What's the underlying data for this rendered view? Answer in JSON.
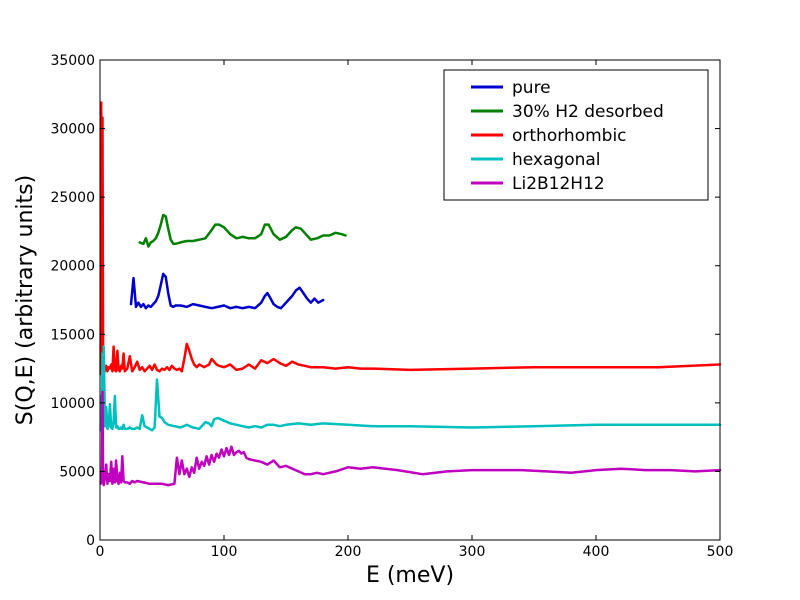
{
  "chart_data": {
    "type": "line",
    "title": "",
    "xlabel": "E (meV)",
    "ylabel": "S(Q,E) (arbitrary units)",
    "xlim": [
      0,
      500
    ],
    "ylim": [
      0,
      35000
    ],
    "x_ticks": [
      0,
      100,
      200,
      300,
      400,
      500
    ],
    "y_ticks": [
      0,
      5000,
      10000,
      15000,
      20000,
      25000,
      30000,
      35000
    ],
    "grid": false,
    "legend": {
      "position": "top-right"
    },
    "series": [
      {
        "name": "pure",
        "color": "#0000cc",
        "x": [
          25,
          27,
          29,
          31,
          33,
          35,
          37,
          39,
          41,
          43,
          45,
          47,
          49,
          51,
          53,
          55,
          57,
          59,
          61,
          65,
          70,
          75,
          80,
          85,
          90,
          95,
          100,
          105,
          110,
          115,
          120,
          125,
          130,
          133,
          135,
          137,
          140,
          143,
          146,
          150,
          155,
          158,
          161,
          164,
          167,
          170,
          173,
          176,
          180
        ],
        "y": [
          17200,
          19100,
          17000,
          17300,
          17000,
          17200,
          16900,
          17100,
          17000,
          17200,
          17400,
          17800,
          18600,
          19400,
          19200,
          18000,
          17100,
          17000,
          17100,
          17100,
          17000,
          17200,
          17100,
          17000,
          16900,
          17000,
          17100,
          16900,
          17000,
          16900,
          17000,
          16900,
          17300,
          17800,
          18000,
          17700,
          17200,
          17000,
          16900,
          17300,
          17800,
          18200,
          18400,
          18000,
          17600,
          17300,
          17600,
          17300,
          17500
        ]
      },
      {
        "name": "30% H2 desorbed",
        "color": "#008000",
        "x": [
          32,
          35,
          37,
          39,
          41,
          43,
          45,
          47,
          49,
          51,
          53,
          55,
          57,
          59,
          61,
          65,
          70,
          75,
          80,
          85,
          90,
          93,
          96,
          100,
          105,
          110,
          115,
          120,
          125,
          130,
          133,
          136,
          140,
          145,
          150,
          155,
          158,
          162,
          166,
          170,
          175,
          180,
          185,
          190,
          195,
          198
        ],
        "y": [
          21700,
          21600,
          22000,
          21400,
          21700,
          21800,
          22000,
          22400,
          23000,
          23700,
          23600,
          22700,
          21900,
          21600,
          21600,
          21700,
          21800,
          21800,
          21900,
          22000,
          22600,
          23000,
          23000,
          22800,
          22300,
          22000,
          22100,
          22000,
          22000,
          22300,
          23000,
          23000,
          22300,
          21900,
          22100,
          22600,
          22800,
          22700,
          22300,
          21900,
          22000,
          22200,
          22200,
          22400,
          22300,
          22200
        ]
      },
      {
        "name": "orthorhombic",
        "color": "#ff0000",
        "x": [
          0.5,
          1,
          1.5,
          2,
          2.5,
          3,
          4,
          5,
          6,
          7,
          8,
          9,
          10,
          11,
          12,
          13,
          14,
          15,
          16,
          17,
          18,
          19,
          20,
          22,
          24,
          26,
          28,
          30,
          32,
          34,
          36,
          38,
          40,
          42,
          44,
          46,
          48,
          50,
          52,
          54,
          56,
          58,
          60,
          62,
          64,
          66,
          68,
          70,
          72,
          74,
          76,
          78,
          80,
          82,
          84,
          86,
          88,
          90,
          92,
          94,
          96,
          100,
          105,
          110,
          115,
          120,
          125,
          130,
          135,
          140,
          145,
          150,
          155,
          160,
          165,
          170,
          180,
          190,
          200,
          210,
          220,
          250,
          300,
          350,
          400,
          450,
          500
        ],
        "y": [
          12100,
          31900,
          12400,
          30800,
          12300,
          12100,
          12400,
          12700,
          12300,
          12600,
          12500,
          12800,
          12300,
          14100,
          12400,
          12300,
          13800,
          12400,
          12300,
          12700,
          12500,
          13600,
          12300,
          12500,
          13400,
          12300,
          12600,
          13000,
          12400,
          12600,
          12300,
          12500,
          12700,
          12400,
          12800,
          12400,
          12300,
          12500,
          12400,
          12600,
          12400,
          12700,
          12500,
          12400,
          12500,
          12300,
          13200,
          14300,
          13800,
          13200,
          12800,
          12600,
          12800,
          12700,
          12600,
          12700,
          12800,
          13200,
          13000,
          12800,
          12700,
          12600,
          12800,
          12400,
          12500,
          12800,
          12500,
          13100,
          12900,
          13200,
          12900,
          12700,
          13000,
          12800,
          12700,
          12600,
          12600,
          12500,
          12600,
          12500,
          12500,
          12400,
          12500,
          12600,
          12600,
          12600,
          12800
        ]
      },
      {
        "name": "hexagonal",
        "color": "#00bfbf",
        "x": [
          0.5,
          1,
          1.5,
          2,
          2.5,
          3,
          4,
          5,
          6,
          7,
          8,
          9,
          10,
          11,
          12,
          13,
          14,
          15,
          16,
          17,
          18,
          19,
          20,
          22,
          24,
          26,
          28,
          30,
          32,
          34,
          36,
          38,
          40,
          42,
          44,
          46,
          48,
          50,
          52,
          55,
          60,
          65,
          70,
          75,
          80,
          85,
          88,
          90,
          92,
          95,
          100,
          105,
          110,
          115,
          120,
          125,
          130,
          135,
          140,
          145,
          150,
          160,
          170,
          180,
          200,
          220,
          250,
          300,
          350,
          400,
          450,
          500
        ],
        "y": [
          8000,
          10500,
          8200,
          13600,
          8100,
          14100,
          8300,
          9700,
          8100,
          8300,
          9900,
          8200,
          8100,
          8600,
          10500,
          8200,
          8300,
          8100,
          8100,
          8200,
          8100,
          8400,
          8100,
          8100,
          8200,
          8100,
          8100,
          8200,
          8100,
          9100,
          8300,
          8200,
          8100,
          8000,
          8200,
          11700,
          9000,
          8900,
          8600,
          8400,
          8300,
          8200,
          8400,
          8200,
          8100,
          8600,
          8500,
          8300,
          8800,
          8900,
          8700,
          8500,
          8400,
          8300,
          8200,
          8300,
          8200,
          8400,
          8400,
          8300,
          8400,
          8500,
          8400,
          8500,
          8400,
          8300,
          8300,
          8200,
          8300,
          8400,
          8400,
          8400
        ]
      },
      {
        "name": "Li2B12H12",
        "color": "#bf00bf",
        "x": [
          0.5,
          1,
          1.5,
          2,
          2.5,
          3,
          4,
          5,
          6,
          7,
          8,
          9,
          10,
          11,
          12,
          13,
          14,
          15,
          16,
          17,
          18,
          19,
          20,
          22,
          24,
          26,
          28,
          30,
          35,
          40,
          45,
          50,
          55,
          60,
          62,
          64,
          66,
          68,
          70,
          72,
          74,
          76,
          78,
          80,
          82,
          84,
          86,
          88,
          90,
          92,
          94,
          96,
          98,
          100,
          102,
          104,
          106,
          108,
          110,
          112,
          114,
          116,
          118,
          120,
          125,
          130,
          135,
          140,
          145,
          150,
          155,
          160,
          165,
          170,
          175,
          180,
          190,
          200,
          210,
          220,
          240,
          260,
          280,
          300,
          320,
          340,
          360,
          380,
          400,
          420,
          440,
          460,
          480,
          500
        ],
        "y": [
          4100,
          5000,
          4200,
          10800,
          4300,
          4000,
          4500,
          5500,
          4100,
          4800,
          4300,
          5700,
          4100,
          5200,
          4200,
          5800,
          4300,
          4100,
          4900,
          4200,
          6100,
          4300,
          4200,
          4200,
          4100,
          4300,
          4200,
          4300,
          4200,
          4100,
          4100,
          4100,
          4000,
          4100,
          6000,
          4800,
          5800,
          4800,
          5200,
          4600,
          5300,
          4900,
          6000,
          5200,
          5700,
          5400,
          6100,
          5500,
          6200,
          5700,
          6300,
          6000,
          6600,
          6100,
          6700,
          6200,
          6800,
          6200,
          6400,
          6500,
          6300,
          6400,
          6000,
          5900,
          5800,
          5700,
          5500,
          5800,
          5300,
          5400,
          5200,
          5000,
          4800,
          4800,
          4900,
          4800,
          5000,
          5300,
          5200,
          5300,
          5100,
          4800,
          5000,
          5100,
          5100,
          5100,
          5000,
          4900,
          5100,
          5200,
          5100,
          5100,
          5000,
          5100
        ]
      }
    ]
  }
}
